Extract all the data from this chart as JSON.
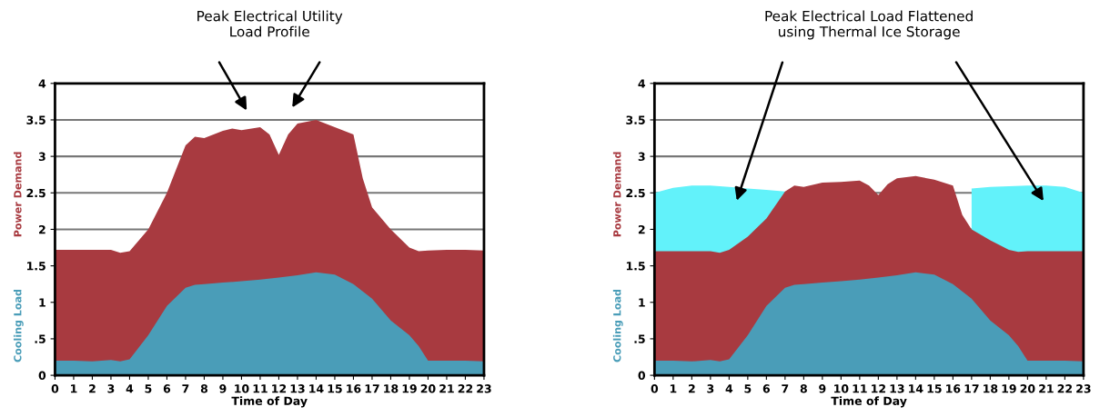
{
  "chart_data": [
    {
      "type": "area",
      "xlabel": "Time of Day",
      "xlim": [
        0,
        23
      ],
      "xticks": [
        0,
        1,
        2,
        3,
        4,
        5,
        6,
        7,
        8,
        9,
        10,
        11,
        12,
        13,
        14,
        15,
        16,
        17,
        18,
        19,
        20,
        21,
        22,
        23
      ],
      "ylim": [
        0,
        4
      ],
      "yticks": [
        0,
        {
          "value": 0.5,
          "label": ".5"
        },
        1,
        1.5,
        2,
        2.5,
        3,
        3.5,
        4
      ],
      "grid": "y",
      "annotations": [
        "Peak Electrical Utility\nLoad Profile"
      ],
      "series": [
        {
          "name": "Power Demand",
          "color": "#a83a40",
          "x": [
            0,
            1,
            2,
            3,
            3.5,
            4,
            5,
            6,
            7,
            7.5,
            8,
            9,
            9.5,
            10,
            11,
            11.5,
            12,
            12.5,
            13,
            14,
            15,
            16,
            16.5,
            17,
            18,
            19,
            19.5,
            20,
            21,
            22,
            23
          ],
          "values": [
            1.72,
            1.72,
            1.72,
            1.72,
            1.68,
            1.7,
            2.0,
            2.5,
            3.15,
            3.27,
            3.25,
            3.35,
            3.38,
            3.36,
            3.4,
            3.3,
            3.02,
            3.3,
            3.45,
            3.5,
            3.4,
            3.3,
            2.7,
            2.3,
            2.0,
            1.75,
            1.7,
            1.71,
            1.72,
            1.72,
            1.71
          ]
        },
        {
          "name": "Cooling Load",
          "color": "#4a9db8",
          "x": [
            0,
            1,
            2,
            3,
            3.5,
            4,
            5,
            6,
            7,
            7.5,
            8,
            9,
            10,
            11,
            12,
            13,
            14,
            15,
            16,
            17,
            18,
            19,
            19.5,
            20,
            21,
            22,
            23
          ],
          "values": [
            0.2,
            0.2,
            0.19,
            0.21,
            0.19,
            0.22,
            0.55,
            0.95,
            1.2,
            1.24,
            1.25,
            1.27,
            1.29,
            1.31,
            1.34,
            1.37,
            1.41,
            1.38,
            1.25,
            1.05,
            0.75,
            0.55,
            0.4,
            0.2,
            0.2,
            0.2,
            0.19
          ]
        }
      ]
    },
    {
      "type": "area",
      "xlabel": "Time of Day",
      "xlim": [
        0,
        23
      ],
      "xticks": [
        0,
        1,
        2,
        3,
        4,
        5,
        6,
        7,
        8,
        9,
        10,
        11,
        12,
        13,
        14,
        15,
        16,
        17,
        18,
        19,
        20,
        21,
        22,
        23
      ],
      "ylim": [
        0,
        4
      ],
      "yticks": [
        0,
        {
          "value": 0.5,
          "label": ".5"
        },
        1,
        1.5,
        2,
        2.5,
        3,
        3.5,
        4
      ],
      "grid": "y",
      "annotations": [
        "Peak Electrical Load Flattened\nusing Thermal Ice Storage"
      ],
      "series": [
        {
          "color": "#62f2fa",
          "x": [
            0,
            1,
            2,
            3,
            4,
            5,
            6,
            7,
            8,
            9,
            10,
            11,
            12,
            13,
            14,
            15,
            16,
            17,
            18,
            19,
            20,
            21,
            22,
            23
          ],
          "values": [
            2.5,
            2.57,
            2.6,
            2.6,
            2.58,
            2.56,
            2.54,
            2.52,
            null,
            null,
            null,
            null,
            null,
            null,
            null,
            null,
            null,
            2.56,
            2.58,
            2.59,
            2.6,
            2.6,
            2.58,
            2.5
          ]
        },
        {
          "name": "Power Demand",
          "color": "#a83a40",
          "x": [
            0,
            1,
            2,
            3,
            3.5,
            4,
            5,
            6,
            7,
            7.5,
            8,
            9,
            10,
            11,
            11.5,
            12,
            12.5,
            13,
            14,
            15,
            16,
            16.5,
            17,
            18,
            19,
            19.5,
            20,
            21,
            22,
            23
          ],
          "values": [
            1.7,
            1.7,
            1.7,
            1.7,
            1.68,
            1.72,
            1.9,
            2.15,
            2.52,
            2.6,
            2.58,
            2.64,
            2.65,
            2.67,
            2.6,
            2.47,
            2.62,
            2.7,
            2.73,
            2.68,
            2.6,
            2.2,
            2.0,
            1.85,
            1.72,
            1.69,
            1.7,
            1.7,
            1.7,
            1.7
          ]
        },
        {
          "name": "Cooling Load",
          "color": "#4a9db8",
          "x": [
            0,
            1,
            2,
            3,
            3.5,
            4,
            5,
            6,
            7,
            7.5,
            8,
            9,
            10,
            11,
            12,
            13,
            14,
            15,
            16,
            17,
            18,
            19,
            19.5,
            20,
            21,
            22,
            23
          ],
          "values": [
            0.2,
            0.2,
            0.19,
            0.21,
            0.19,
            0.22,
            0.55,
            0.95,
            1.2,
            1.24,
            1.25,
            1.27,
            1.29,
            1.31,
            1.34,
            1.37,
            1.41,
            1.38,
            1.25,
            1.05,
            0.75,
            0.55,
            0.4,
            0.2,
            0.2,
            0.2,
            0.19
          ]
        }
      ]
    }
  ]
}
